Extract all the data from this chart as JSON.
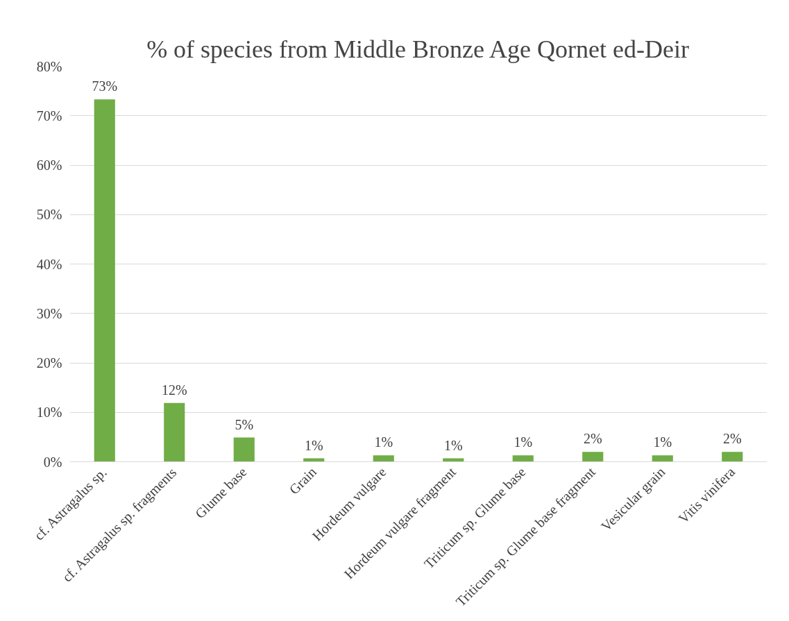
{
  "chart_data": {
    "type": "bar",
    "title": "% of species from Middle Bronze Age Qornet ed-Deir",
    "categories": [
      "cf. Astragalus sp.",
      "cf. Astragalus sp. fragments",
      "Glume base",
      "Grain",
      "Hordeum vulgare",
      "Hordeum vulgare fragment",
      "Triticum sp. Glume base",
      "Triticum sp. Glume base fragment",
      "Vesicular grain",
      "Vitis vinifera"
    ],
    "values": [
      73.3,
      11.9,
      4.9,
      0.7,
      1.3,
      0.7,
      1.3,
      2.0,
      1.3,
      2.0
    ],
    "value_labels": [
      "73%",
      "12%",
      "5%",
      "1%",
      "1%",
      "1%",
      "1%",
      "2%",
      "1%",
      "2%"
    ],
    "color": "#70ad47",
    "ylim": [
      0,
      80
    ],
    "yticks": [
      {
        "value": 0,
        "label": "0%"
      },
      {
        "value": 10,
        "label": "10%"
      },
      {
        "value": 20,
        "label": "20%"
      },
      {
        "value": 30,
        "label": "30%"
      },
      {
        "value": 40,
        "label": "40%"
      },
      {
        "value": 50,
        "label": "50%"
      },
      {
        "value": 60,
        "label": "60%"
      },
      {
        "value": 70,
        "label": "70%"
      },
      {
        "value": 80,
        "label": "80%"
      }
    ],
    "grid": "y"
  }
}
